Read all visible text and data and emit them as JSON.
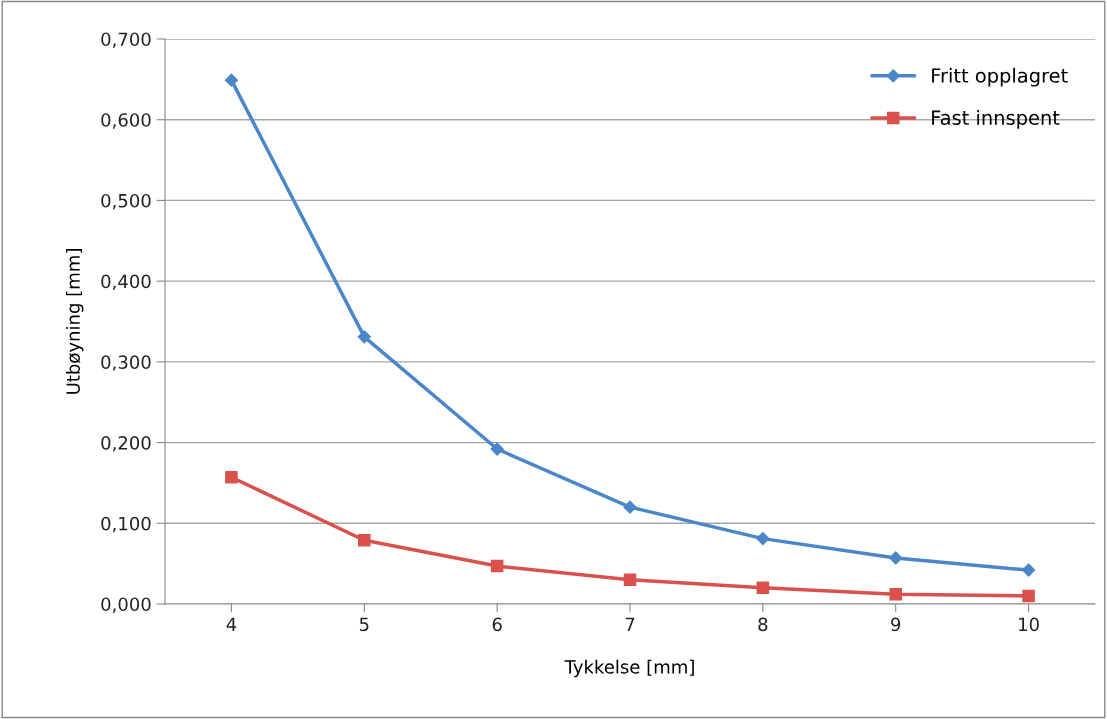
{
  "chart_data": {
    "type": "line",
    "xlabel": "Tykkelse [mm]",
    "ylabel": "Utbøyning [mm]",
    "categories": [
      "4",
      "5",
      "6",
      "7",
      "8",
      "9",
      "10"
    ],
    "series": [
      {
        "name": "Fritt opplagret",
        "color": "#4a86c8",
        "marker": "diamond",
        "values": [
          0.649,
          0.331,
          0.192,
          0.12,
          0.081,
          0.057,
          0.042
        ]
      },
      {
        "name": "Fast innspent",
        "color": "#d9504c",
        "marker": "square",
        "values": [
          0.157,
          0.079,
          0.047,
          0.03,
          0.02,
          0.012,
          0.01
        ]
      }
    ],
    "ylim": [
      0,
      0.7
    ],
    "yticks": [
      {
        "value": 0,
        "label": "0,000"
      },
      {
        "value": 0.1,
        "label": "0,100"
      },
      {
        "value": 0.2,
        "label": "0,200"
      },
      {
        "value": 0.3,
        "label": "0,300"
      },
      {
        "value": 0.4,
        "label": "0,400"
      },
      {
        "value": 0.5,
        "label": "0,500"
      },
      {
        "value": 0.6,
        "label": "0,600"
      },
      {
        "value": 0.7,
        "label": "0,700"
      }
    ],
    "grid": "y",
    "legend": "top right",
    "line_style": "solid"
  }
}
